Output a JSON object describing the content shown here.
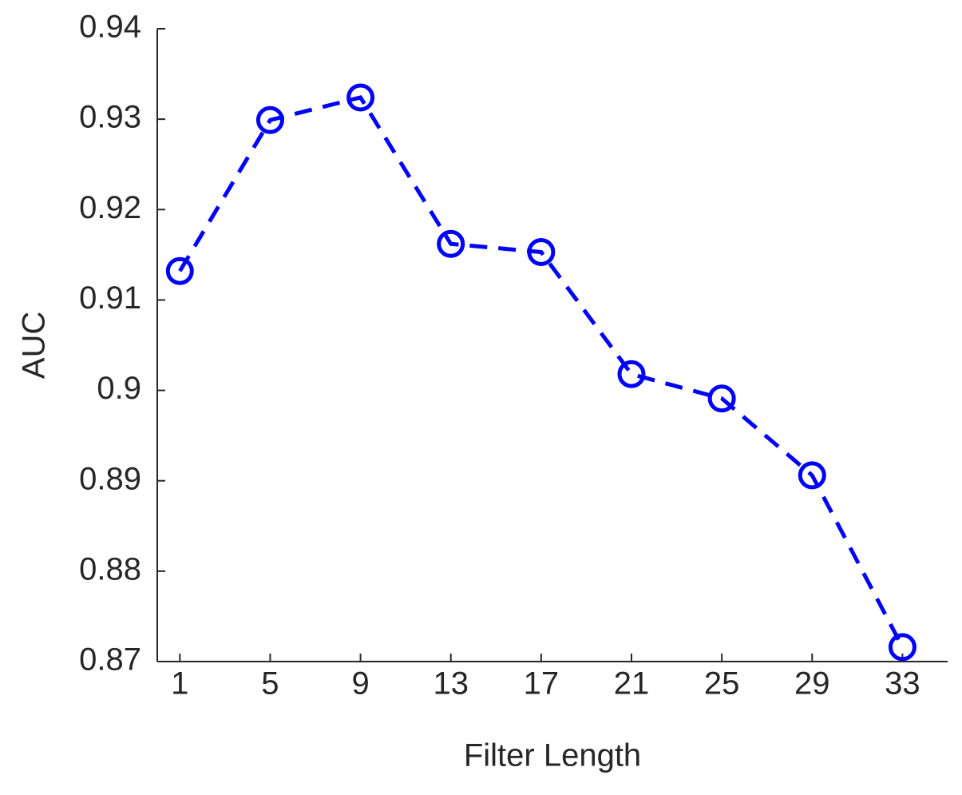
{
  "chart_data": {
    "type": "line",
    "x_label": "Filter Length",
    "y_label": "AUC",
    "x": [
      1,
      5,
      9,
      13,
      17,
      21,
      25,
      29,
      33
    ],
    "series": [
      {
        "color": "#0000ff",
        "values": [
          0.9132,
          0.9299,
          0.9324,
          0.9162,
          0.9153,
          0.9018,
          0.8991,
          0.8906,
          0.8716
        ]
      }
    ],
    "xlim": [
      0,
      35
    ],
    "ylim": [
      0.87,
      0.94
    ],
    "xticks": [
      1,
      5,
      9,
      13,
      17,
      21,
      25,
      29,
      33
    ],
    "yticks": [
      0.87,
      0.88,
      0.89,
      0.9,
      0.91,
      0.92,
      0.93,
      0.94
    ],
    "marker": "circle",
    "line_style": "dashed",
    "grid": false
  }
}
